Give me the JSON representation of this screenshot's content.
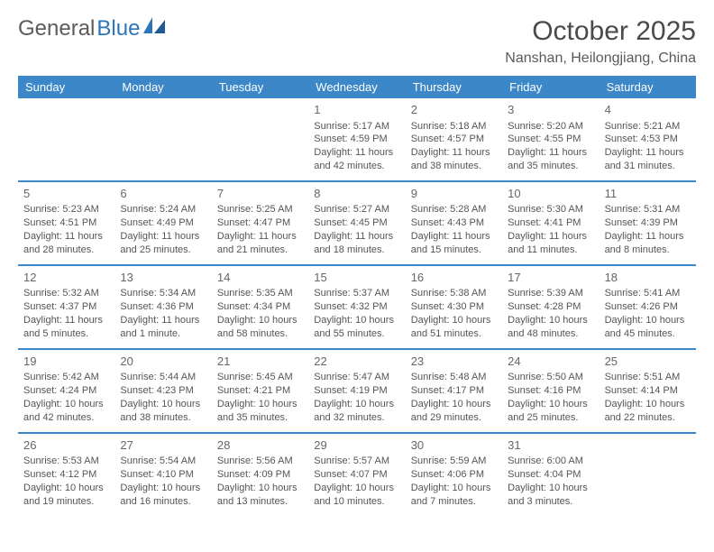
{
  "logo": {
    "text1": "General",
    "text2": "Blue"
  },
  "title": "October 2025",
  "subtitle": "Nanshan, Heilongjiang, China",
  "colors": {
    "header_bg": "#3b87c8",
    "header_text": "#ffffff",
    "border": "#3b87c8",
    "body_text": "#555555",
    "title_text": "#4a4a4a",
    "logo_gray": "#6a6a6a",
    "logo_blue": "#2a75bb",
    "background": "#ffffff"
  },
  "weekdays": [
    "Sunday",
    "Monday",
    "Tuesday",
    "Wednesday",
    "Thursday",
    "Friday",
    "Saturday"
  ],
  "weeks": [
    [
      {
        "n": "",
        "sr": "",
        "ss": "",
        "dl": ""
      },
      {
        "n": "",
        "sr": "",
        "ss": "",
        "dl": ""
      },
      {
        "n": "",
        "sr": "",
        "ss": "",
        "dl": ""
      },
      {
        "n": "1",
        "sr": "Sunrise: 5:17 AM",
        "ss": "Sunset: 4:59 PM",
        "dl": "Daylight: 11 hours and 42 minutes."
      },
      {
        "n": "2",
        "sr": "Sunrise: 5:18 AM",
        "ss": "Sunset: 4:57 PM",
        "dl": "Daylight: 11 hours and 38 minutes."
      },
      {
        "n": "3",
        "sr": "Sunrise: 5:20 AM",
        "ss": "Sunset: 4:55 PM",
        "dl": "Daylight: 11 hours and 35 minutes."
      },
      {
        "n": "4",
        "sr": "Sunrise: 5:21 AM",
        "ss": "Sunset: 4:53 PM",
        "dl": "Daylight: 11 hours and 31 minutes."
      }
    ],
    [
      {
        "n": "5",
        "sr": "Sunrise: 5:23 AM",
        "ss": "Sunset: 4:51 PM",
        "dl": "Daylight: 11 hours and 28 minutes."
      },
      {
        "n": "6",
        "sr": "Sunrise: 5:24 AM",
        "ss": "Sunset: 4:49 PM",
        "dl": "Daylight: 11 hours and 25 minutes."
      },
      {
        "n": "7",
        "sr": "Sunrise: 5:25 AM",
        "ss": "Sunset: 4:47 PM",
        "dl": "Daylight: 11 hours and 21 minutes."
      },
      {
        "n": "8",
        "sr": "Sunrise: 5:27 AM",
        "ss": "Sunset: 4:45 PM",
        "dl": "Daylight: 11 hours and 18 minutes."
      },
      {
        "n": "9",
        "sr": "Sunrise: 5:28 AM",
        "ss": "Sunset: 4:43 PM",
        "dl": "Daylight: 11 hours and 15 minutes."
      },
      {
        "n": "10",
        "sr": "Sunrise: 5:30 AM",
        "ss": "Sunset: 4:41 PM",
        "dl": "Daylight: 11 hours and 11 minutes."
      },
      {
        "n": "11",
        "sr": "Sunrise: 5:31 AM",
        "ss": "Sunset: 4:39 PM",
        "dl": "Daylight: 11 hours and 8 minutes."
      }
    ],
    [
      {
        "n": "12",
        "sr": "Sunrise: 5:32 AM",
        "ss": "Sunset: 4:37 PM",
        "dl": "Daylight: 11 hours and 5 minutes."
      },
      {
        "n": "13",
        "sr": "Sunrise: 5:34 AM",
        "ss": "Sunset: 4:36 PM",
        "dl": "Daylight: 11 hours and 1 minute."
      },
      {
        "n": "14",
        "sr": "Sunrise: 5:35 AM",
        "ss": "Sunset: 4:34 PM",
        "dl": "Daylight: 10 hours and 58 minutes."
      },
      {
        "n": "15",
        "sr": "Sunrise: 5:37 AM",
        "ss": "Sunset: 4:32 PM",
        "dl": "Daylight: 10 hours and 55 minutes."
      },
      {
        "n": "16",
        "sr": "Sunrise: 5:38 AM",
        "ss": "Sunset: 4:30 PM",
        "dl": "Daylight: 10 hours and 51 minutes."
      },
      {
        "n": "17",
        "sr": "Sunrise: 5:39 AM",
        "ss": "Sunset: 4:28 PM",
        "dl": "Daylight: 10 hours and 48 minutes."
      },
      {
        "n": "18",
        "sr": "Sunrise: 5:41 AM",
        "ss": "Sunset: 4:26 PM",
        "dl": "Daylight: 10 hours and 45 minutes."
      }
    ],
    [
      {
        "n": "19",
        "sr": "Sunrise: 5:42 AM",
        "ss": "Sunset: 4:24 PM",
        "dl": "Daylight: 10 hours and 42 minutes."
      },
      {
        "n": "20",
        "sr": "Sunrise: 5:44 AM",
        "ss": "Sunset: 4:23 PM",
        "dl": "Daylight: 10 hours and 38 minutes."
      },
      {
        "n": "21",
        "sr": "Sunrise: 5:45 AM",
        "ss": "Sunset: 4:21 PM",
        "dl": "Daylight: 10 hours and 35 minutes."
      },
      {
        "n": "22",
        "sr": "Sunrise: 5:47 AM",
        "ss": "Sunset: 4:19 PM",
        "dl": "Daylight: 10 hours and 32 minutes."
      },
      {
        "n": "23",
        "sr": "Sunrise: 5:48 AM",
        "ss": "Sunset: 4:17 PM",
        "dl": "Daylight: 10 hours and 29 minutes."
      },
      {
        "n": "24",
        "sr": "Sunrise: 5:50 AM",
        "ss": "Sunset: 4:16 PM",
        "dl": "Daylight: 10 hours and 25 minutes."
      },
      {
        "n": "25",
        "sr": "Sunrise: 5:51 AM",
        "ss": "Sunset: 4:14 PM",
        "dl": "Daylight: 10 hours and 22 minutes."
      }
    ],
    [
      {
        "n": "26",
        "sr": "Sunrise: 5:53 AM",
        "ss": "Sunset: 4:12 PM",
        "dl": "Daylight: 10 hours and 19 minutes."
      },
      {
        "n": "27",
        "sr": "Sunrise: 5:54 AM",
        "ss": "Sunset: 4:10 PM",
        "dl": "Daylight: 10 hours and 16 minutes."
      },
      {
        "n": "28",
        "sr": "Sunrise: 5:56 AM",
        "ss": "Sunset: 4:09 PM",
        "dl": "Daylight: 10 hours and 13 minutes."
      },
      {
        "n": "29",
        "sr": "Sunrise: 5:57 AM",
        "ss": "Sunset: 4:07 PM",
        "dl": "Daylight: 10 hours and 10 minutes."
      },
      {
        "n": "30",
        "sr": "Sunrise: 5:59 AM",
        "ss": "Sunset: 4:06 PM",
        "dl": "Daylight: 10 hours and 7 minutes."
      },
      {
        "n": "31",
        "sr": "Sunrise: 6:00 AM",
        "ss": "Sunset: 4:04 PM",
        "dl": "Daylight: 10 hours and 3 minutes."
      },
      {
        "n": "",
        "sr": "",
        "ss": "",
        "dl": ""
      }
    ]
  ]
}
